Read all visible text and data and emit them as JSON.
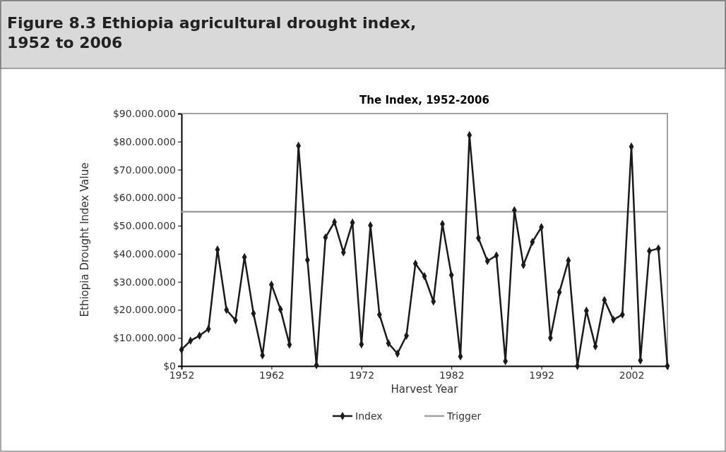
{
  "chart_data": {
    "type": "line",
    "title": "Figure 8.3 Ethiopia agricultural drought index, 1952 to 2006",
    "subtitle": "The Index, 1952-2006",
    "xlabel": "Harvest Year",
    "ylabel": "Ethiopia Drought Index Value",
    "x": [
      1952,
      1953,
      1954,
      1955,
      1956,
      1957,
      1958,
      1959,
      1960,
      1961,
      1962,
      1963,
      1964,
      1965,
      1966,
      1967,
      1968,
      1969,
      1970,
      1971,
      1972,
      1973,
      1974,
      1975,
      1976,
      1977,
      1978,
      1979,
      1980,
      1981,
      1982,
      1983,
      1984,
      1985,
      1986,
      1987,
      1988,
      1989,
      1990,
      1991,
      1992,
      1993,
      1994,
      1995,
      1996,
      1997,
      1998,
      1999,
      2000,
      2001,
      2002,
      2003,
      2004,
      2005,
      2006
    ],
    "series": [
      {
        "name": "Index",
        "color": "#1a1a1a",
        "marker": "diamond",
        "values": [
          5800000,
          9000000,
          10800000,
          13200000,
          41500000,
          20000000,
          16300000,
          38800000,
          18700000,
          3800000,
          29000000,
          20200000,
          7600000,
          78500000,
          37800000,
          300000,
          45800000,
          51300000,
          40500000,
          51100000,
          7700000,
          50100000,
          18300000,
          8100000,
          4400000,
          10800000,
          36500000,
          32000000,
          23000000,
          50600000,
          32400000,
          3400000,
          82300000,
          45600000,
          37400000,
          39400000,
          1700000,
          55500000,
          36000000,
          44200000,
          49500000,
          10000000,
          26300000,
          37600000,
          0,
          19700000,
          7000000,
          23500000,
          16500000,
          18300000,
          78200000,
          2000000,
          41000000,
          41900000,
          0
        ]
      },
      {
        "name": "Trigger",
        "color": "#a0a0a0",
        "marker": "none",
        "x": [
          1952,
          2006
        ],
        "values": [
          55000000,
          55000000
        ]
      }
    ],
    "xlim": [
      1952,
      2006
    ],
    "xticks": [
      1952,
      1962,
      1972,
      1982,
      1992,
      2002
    ],
    "ylim": [
      0,
      90000000
    ],
    "yticks": [
      {
        "value": 0,
        "label": "$0"
      },
      {
        "value": 10000000,
        "label": "$10.000.000"
      },
      {
        "value": 20000000,
        "label": "$20.000.000"
      },
      {
        "value": 30000000,
        "label": "$30.000.000"
      },
      {
        "value": 40000000,
        "label": "$40.000.000"
      },
      {
        "value": 50000000,
        "label": "$50.000.000"
      },
      {
        "value": 60000000,
        "label": "$60.000.000"
      },
      {
        "value": 70000000,
        "label": "$70.000.000"
      },
      {
        "value": 80000000,
        "label": "$80.000.000"
      },
      {
        "value": 90000000,
        "label": "$90.000.000"
      }
    ],
    "grid": false,
    "legend": "bottom",
    "line_style": "solid"
  }
}
